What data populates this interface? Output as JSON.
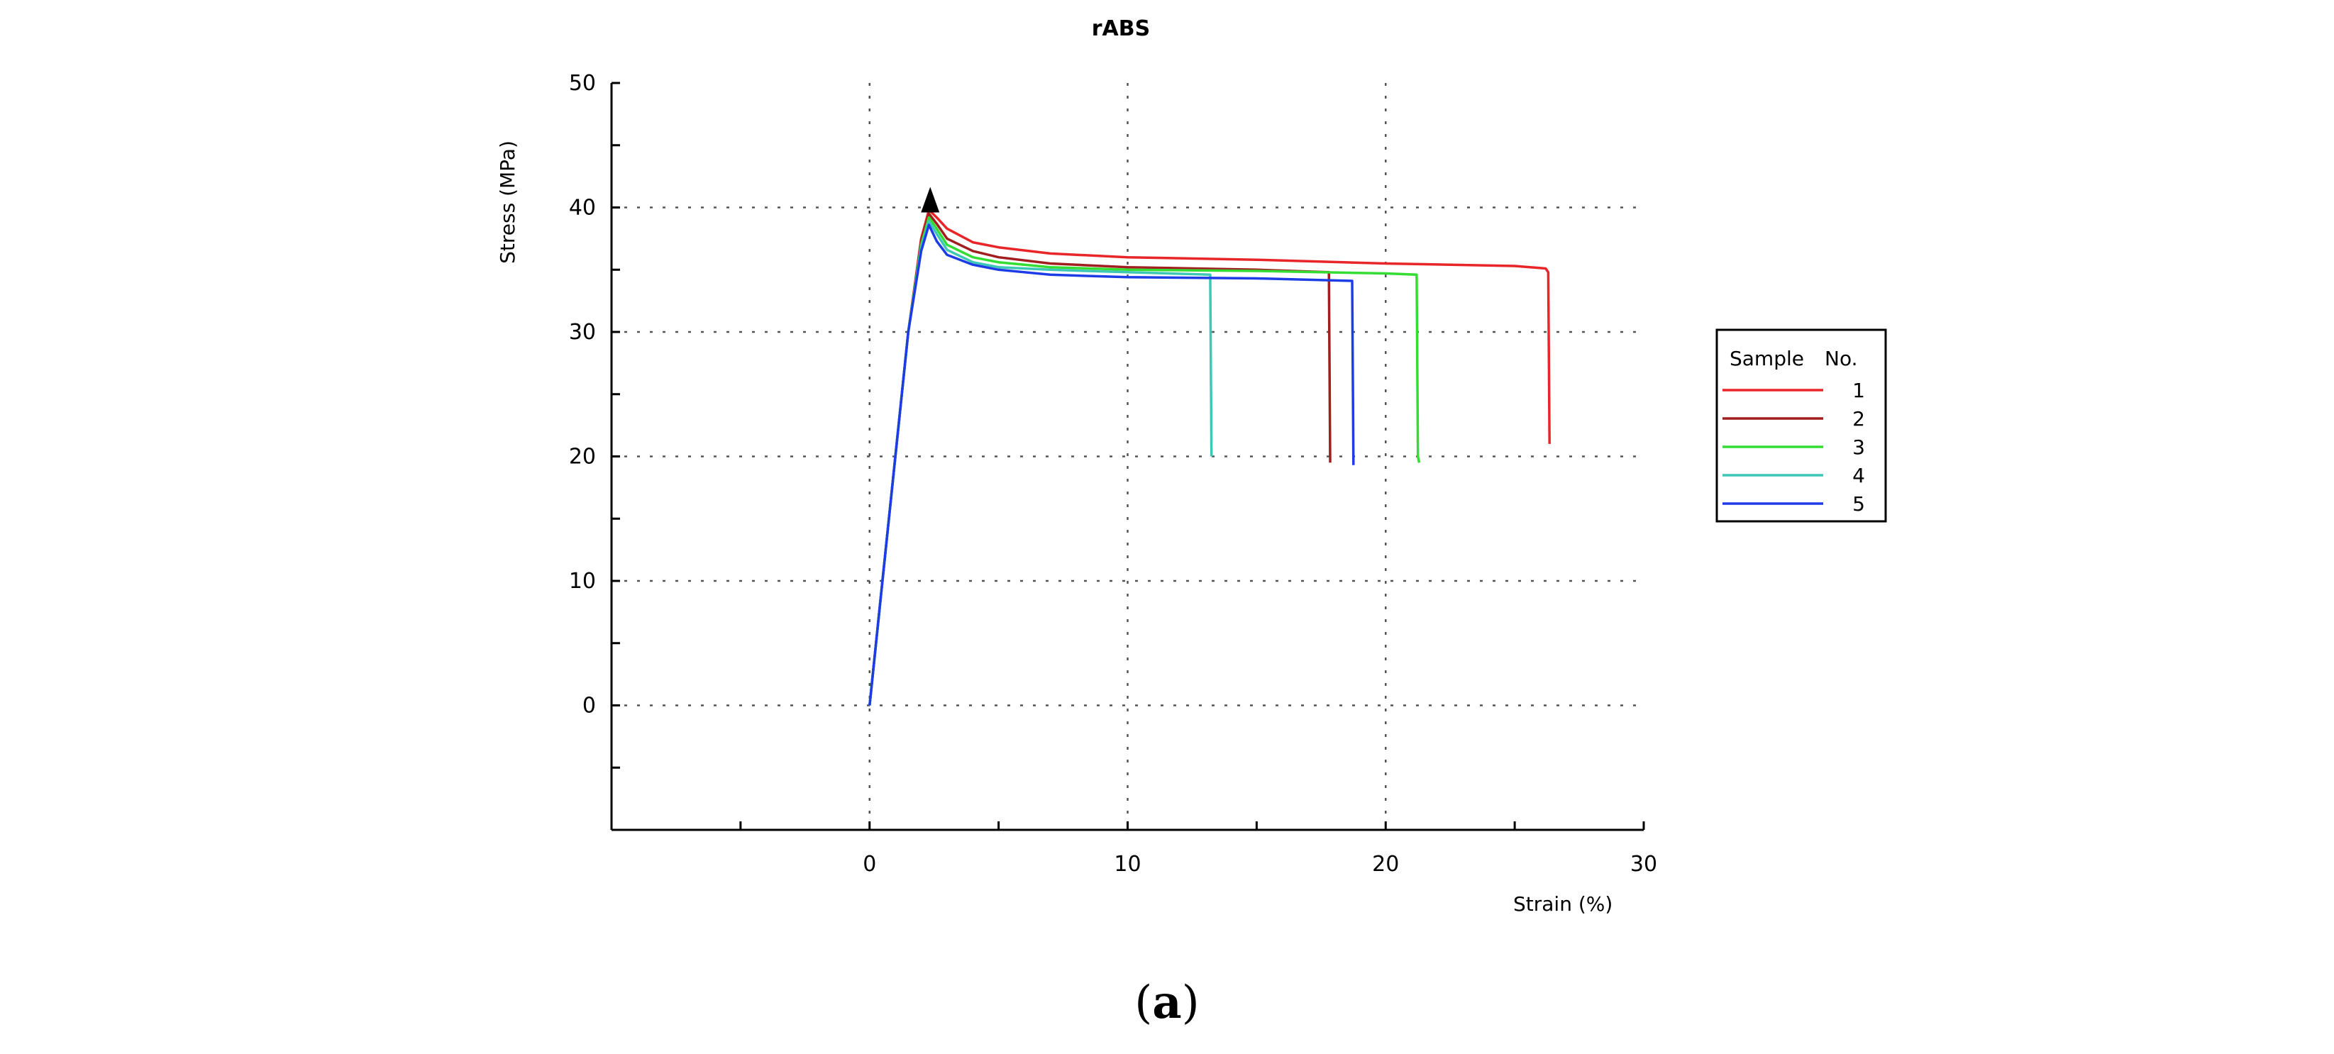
{
  "chart_data": {
    "type": "line",
    "title": "rABS",
    "xlabel": "Strain (%)",
    "ylabel": "Stress (MPa)",
    "xlim": [
      -10,
      30
    ],
    "ylim": [
      -10,
      50
    ],
    "x_ticks": [
      0,
      10,
      20,
      30
    ],
    "y_ticks": [
      0,
      10,
      20,
      30,
      40,
      50
    ],
    "grid": true,
    "legend_position": "right",
    "legend_title": [
      "Sample",
      "No."
    ],
    "series": [
      {
        "name": "1",
        "color": "#e8262a",
        "points": [
          [
            0,
            0
          ],
          [
            0.5,
            10
          ],
          [
            1,
            20
          ],
          [
            1.5,
            30
          ],
          [
            2,
            37.5
          ],
          [
            2.3,
            39.8
          ],
          [
            2.6,
            39.2
          ],
          [
            3,
            38.3
          ],
          [
            4,
            37.2
          ],
          [
            5,
            36.8
          ],
          [
            7,
            36.3
          ],
          [
            10,
            36
          ],
          [
            15,
            35.8
          ],
          [
            20,
            35.5
          ],
          [
            25,
            35.3
          ],
          [
            26.2,
            35.1
          ],
          [
            26.3,
            34.8
          ],
          [
            26.35,
            21
          ]
        ]
      },
      {
        "name": "2",
        "color": "#a01e1e",
        "points": [
          [
            0,
            0
          ],
          [
            0.5,
            10
          ],
          [
            1,
            20
          ],
          [
            1.5,
            30
          ],
          [
            2,
            37.3
          ],
          [
            2.3,
            39.5
          ],
          [
            2.6,
            38.7
          ],
          [
            3,
            37.5
          ],
          [
            4,
            36.5
          ],
          [
            5,
            36
          ],
          [
            7,
            35.5
          ],
          [
            10,
            35.2
          ],
          [
            15,
            35
          ],
          [
            17.8,
            34.8
          ],
          [
            17.85,
            19.5
          ]
        ]
      },
      {
        "name": "3",
        "color": "#33dd33",
        "points": [
          [
            0,
            0
          ],
          [
            0.5,
            10
          ],
          [
            1,
            20
          ],
          [
            1.5,
            30
          ],
          [
            2,
            37
          ],
          [
            2.3,
            39.2
          ],
          [
            2.6,
            38.3
          ],
          [
            3,
            37
          ],
          [
            4,
            36
          ],
          [
            5,
            35.6
          ],
          [
            7,
            35.2
          ],
          [
            10,
            35
          ],
          [
            15,
            34.9
          ],
          [
            20,
            34.7
          ],
          [
            21.2,
            34.6
          ],
          [
            21.25,
            20
          ],
          [
            21.3,
            19.5
          ]
        ]
      },
      {
        "name": "4",
        "color": "#3cc8b4",
        "points": [
          [
            0,
            0
          ],
          [
            0.5,
            10
          ],
          [
            1,
            20
          ],
          [
            1.5,
            30
          ],
          [
            2,
            36.8
          ],
          [
            2.3,
            38.9
          ],
          [
            2.6,
            37.9
          ],
          [
            3,
            36.6
          ],
          [
            4,
            35.6
          ],
          [
            5,
            35.2
          ],
          [
            7,
            35
          ],
          [
            10,
            34.8
          ],
          [
            13.2,
            34.6
          ],
          [
            13.25,
            20
          ]
        ]
      },
      {
        "name": "5",
        "color": "#1e3ce6",
        "points": [
          [
            0,
            0
          ],
          [
            0.5,
            10
          ],
          [
            1,
            20
          ],
          [
            1.5,
            30
          ],
          [
            2,
            36.5
          ],
          [
            2.3,
            38.6
          ],
          [
            2.6,
            37.3
          ],
          [
            3,
            36.2
          ],
          [
            4,
            35.4
          ],
          [
            5,
            35
          ],
          [
            7,
            34.6
          ],
          [
            10,
            34.4
          ],
          [
            15,
            34.3
          ],
          [
            18.7,
            34.1
          ],
          [
            18.75,
            19.3
          ]
        ]
      }
    ],
    "markers": [
      {
        "type": "triangle",
        "color": "#000000",
        "x": 2.35,
        "y": 40.4
      }
    ]
  },
  "caption": {
    "open": "(",
    "letter": "a",
    "close": ")"
  }
}
